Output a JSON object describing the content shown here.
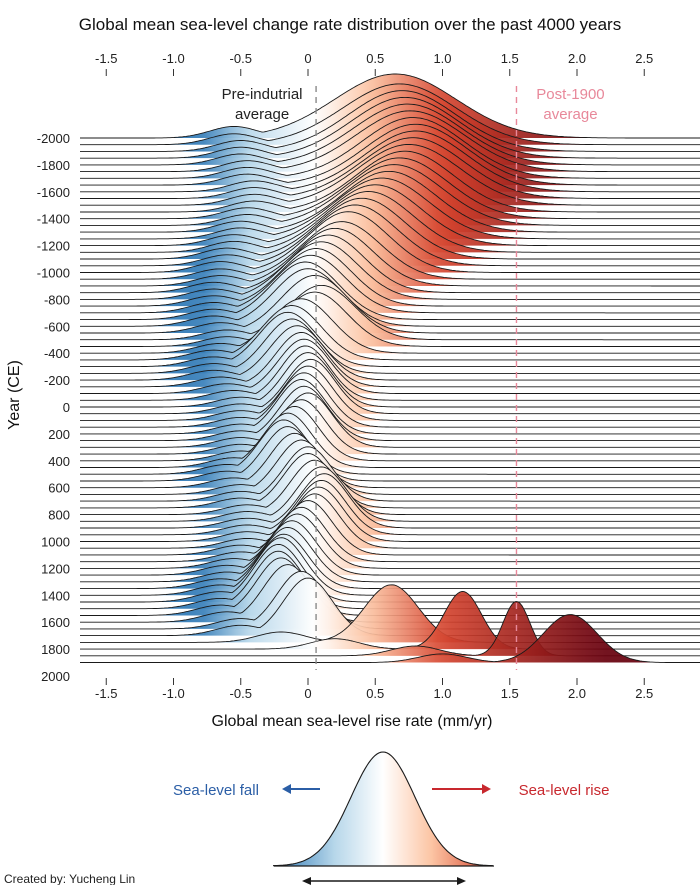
{
  "chart_data": {
    "type": "ridgeline",
    "title": "Global mean sea-level change rate distribution over the past 4000 years",
    "xlabel": "Global mean sea-level rise rate (mm/yr)",
    "ylabel": "Year (CE)",
    "xlim": [
      -1.7,
      2.9
    ],
    "x_ticks": [
      "-1.5",
      "-1.0",
      "-0.5",
      "0",
      "0.5",
      "1.0",
      "1.5",
      "2.0",
      "2.5"
    ],
    "y_ticks": [
      "-2000",
      "-1800",
      "-1600",
      "-1400",
      "-1200",
      "-1000",
      "-800",
      "-600",
      "-400",
      "-200",
      "0",
      "200",
      "400",
      "600",
      "800",
      "1000",
      "1200",
      "1400",
      "1600",
      "1800",
      "2000"
    ],
    "year_step": 50,
    "ridges": [
      {
        "year": -2000,
        "mean": 0.65,
        "sd": 0.45,
        "amp": 1.0,
        "low": -0.55
      },
      {
        "year": -1950,
        "mean": 0.68,
        "sd": 0.42,
        "amp": 0.95,
        "low": -0.55
      },
      {
        "year": -1900,
        "mean": 0.7,
        "sd": 0.4,
        "amp": 0.95,
        "low": -0.5
      },
      {
        "year": -1850,
        "mean": 0.72,
        "sd": 0.4,
        "amp": 0.95,
        "low": -0.5
      },
      {
        "year": -1800,
        "mean": 0.74,
        "sd": 0.4,
        "amp": 0.95,
        "low": -0.5
      },
      {
        "year": -1750,
        "mean": 0.76,
        "sd": 0.4,
        "amp": 0.95,
        "low": -0.45
      },
      {
        "year": -1700,
        "mean": 0.78,
        "sd": 0.38,
        "amp": 0.95,
        "low": -0.45
      },
      {
        "year": -1650,
        "mean": 0.8,
        "sd": 0.38,
        "amp": 0.95,
        "low": -0.45
      },
      {
        "year": -1600,
        "mean": 0.8,
        "sd": 0.38,
        "amp": 0.95,
        "low": -0.4
      },
      {
        "year": -1550,
        "mean": 0.78,
        "sd": 0.38,
        "amp": 0.95,
        "low": -0.4
      },
      {
        "year": -1500,
        "mean": 0.75,
        "sd": 0.38,
        "amp": 0.95,
        "low": -0.4
      },
      {
        "year": -1450,
        "mean": 0.72,
        "sd": 0.36,
        "amp": 0.95,
        "low": -0.4
      },
      {
        "year": -1400,
        "mean": 0.68,
        "sd": 0.36,
        "amp": 0.95,
        "low": -0.45
      },
      {
        "year": -1350,
        "mean": 0.64,
        "sd": 0.36,
        "amp": 0.95,
        "low": -0.45
      },
      {
        "year": -1300,
        "mean": 0.6,
        "sd": 0.35,
        "amp": 0.95,
        "low": -0.5
      },
      {
        "year": -1250,
        "mean": 0.55,
        "sd": 0.35,
        "amp": 0.95,
        "low": -0.5
      },
      {
        "year": -1200,
        "mean": 0.5,
        "sd": 0.34,
        "amp": 0.95,
        "low": -0.55
      },
      {
        "year": -1150,
        "mean": 0.45,
        "sd": 0.33,
        "amp": 0.95,
        "low": -0.55
      },
      {
        "year": -1100,
        "mean": 0.4,
        "sd": 0.32,
        "amp": 0.95,
        "low": -0.6
      },
      {
        "year": -1050,
        "mean": 0.35,
        "sd": 0.31,
        "amp": 0.95,
        "low": -0.6
      },
      {
        "year": -1000,
        "mean": 0.3,
        "sd": 0.3,
        "amp": 0.95,
        "low": -0.65
      },
      {
        "year": -950,
        "mean": 0.25,
        "sd": 0.29,
        "amp": 0.9,
        "low": -0.65
      },
      {
        "year": -900,
        "mean": 0.2,
        "sd": 0.28,
        "amp": 0.9,
        "low": -0.65
      },
      {
        "year": -850,
        "mean": 0.15,
        "sd": 0.27,
        "amp": 0.9,
        "low": -0.7
      },
      {
        "year": -800,
        "mean": 0.1,
        "sd": 0.27,
        "amp": 0.9,
        "low": -0.7
      },
      {
        "year": -750,
        "mean": 0.06,
        "sd": 0.26,
        "amp": 0.9,
        "low": -0.7
      },
      {
        "year": -700,
        "mean": 0.02,
        "sd": 0.26,
        "amp": 0.9,
        "low": -0.7
      },
      {
        "year": -650,
        "mean": -0.02,
        "sd": 0.25,
        "amp": 0.9,
        "low": -0.7
      },
      {
        "year": -600,
        "mean": 0.0,
        "sd": 0.25,
        "amp": 0.9,
        "low": -0.7
      },
      {
        "year": -550,
        "mean": 0.05,
        "sd": 0.25,
        "amp": 0.9,
        "low": -0.65
      },
      {
        "year": -500,
        "mean": 0.1,
        "sd": 0.25,
        "amp": 0.85,
        "low": -0.6
      },
      {
        "year": -450,
        "mean": 0.05,
        "sd": 0.24,
        "amp": 0.85,
        "low": -0.6
      },
      {
        "year": -400,
        "mean": -0.05,
        "sd": 0.23,
        "amp": 0.85,
        "low": -0.65
      },
      {
        "year": -350,
        "mean": -0.12,
        "sd": 0.22,
        "amp": 0.85,
        "low": -0.7
      },
      {
        "year": -300,
        "mean": -0.15,
        "sd": 0.21,
        "amp": 0.85,
        "low": -0.7
      },
      {
        "year": -250,
        "mean": -0.12,
        "sd": 0.2,
        "amp": 0.85,
        "low": -0.7
      },
      {
        "year": -200,
        "mean": -0.08,
        "sd": 0.2,
        "amp": 0.85,
        "low": -0.7
      },
      {
        "year": -150,
        "mean": -0.05,
        "sd": 0.19,
        "amp": 0.85,
        "low": -0.65
      },
      {
        "year": -100,
        "mean": -0.03,
        "sd": 0.19,
        "amp": 0.85,
        "low": -0.6
      },
      {
        "year": -50,
        "mean": -0.02,
        "sd": 0.18,
        "amp": 0.85,
        "low": -0.55
      },
      {
        "year": 0,
        "mean": 0.0,
        "sd": 0.18,
        "amp": 0.85,
        "low": -0.5
      },
      {
        "year": 50,
        "mean": 0.02,
        "sd": 0.18,
        "amp": 0.85,
        "low": -0.5
      },
      {
        "year": 100,
        "mean": 0.0,
        "sd": 0.18,
        "amp": 0.85,
        "low": -0.5
      },
      {
        "year": 150,
        "mean": -0.03,
        "sd": 0.18,
        "amp": 0.85,
        "low": -0.5
      },
      {
        "year": 200,
        "mean": -0.05,
        "sd": 0.18,
        "amp": 0.85,
        "low": -0.5
      },
      {
        "year": 250,
        "mean": -0.03,
        "sd": 0.18,
        "amp": 0.85,
        "low": -0.5
      },
      {
        "year": 300,
        "mean": 0.0,
        "sd": 0.18,
        "amp": 0.85,
        "low": -0.5
      },
      {
        "year": 350,
        "mean": -0.05,
        "sd": 0.18,
        "amp": 0.85,
        "low": -0.5
      },
      {
        "year": 400,
        "mean": -0.1,
        "sd": 0.18,
        "amp": 0.85,
        "low": -0.5
      },
      {
        "year": 450,
        "mean": -0.15,
        "sd": 0.18,
        "amp": 0.85,
        "low": -0.55
      },
      {
        "year": 500,
        "mean": -0.18,
        "sd": 0.18,
        "amp": 0.85,
        "low": -0.6
      },
      {
        "year": 550,
        "mean": -0.15,
        "sd": 0.18,
        "amp": 0.85,
        "low": -0.6
      },
      {
        "year": 600,
        "mean": -0.1,
        "sd": 0.18,
        "amp": 0.85,
        "low": -0.55
      },
      {
        "year": 650,
        "mean": -0.05,
        "sd": 0.18,
        "amp": 0.85,
        "low": -0.5
      },
      {
        "year": 700,
        "mean": 0.0,
        "sd": 0.18,
        "amp": 0.85,
        "low": -0.5
      },
      {
        "year": 750,
        "mean": 0.0,
        "sd": 0.18,
        "amp": 0.85,
        "low": -0.5
      },
      {
        "year": 800,
        "mean": 0.05,
        "sd": 0.18,
        "amp": 0.85,
        "low": -0.45
      },
      {
        "year": 850,
        "mean": 0.1,
        "sd": 0.18,
        "amp": 0.85,
        "low": -0.45
      },
      {
        "year": 900,
        "mean": 0.12,
        "sd": 0.18,
        "amp": 0.85,
        "low": -0.45
      },
      {
        "year": 950,
        "mean": 0.1,
        "sd": 0.18,
        "amp": 0.85,
        "low": -0.45
      },
      {
        "year": 1000,
        "mean": 0.08,
        "sd": 0.18,
        "amp": 0.85,
        "low": -0.45
      },
      {
        "year": 1050,
        "mean": 0.05,
        "sd": 0.18,
        "amp": 0.85,
        "low": -0.45
      },
      {
        "year": 1100,
        "mean": 0.0,
        "sd": 0.18,
        "amp": 0.85,
        "low": -0.5
      },
      {
        "year": 1150,
        "mean": -0.05,
        "sd": 0.18,
        "amp": 0.85,
        "low": -0.5
      },
      {
        "year": 1200,
        "mean": -0.08,
        "sd": 0.18,
        "amp": 0.85,
        "low": -0.55
      },
      {
        "year": 1250,
        "mean": -0.12,
        "sd": 0.18,
        "amp": 0.85,
        "low": -0.6
      },
      {
        "year": 1300,
        "mean": -0.15,
        "sd": 0.18,
        "amp": 0.85,
        "low": -0.6
      },
      {
        "year": 1350,
        "mean": -0.18,
        "sd": 0.18,
        "amp": 0.85,
        "low": -0.65
      },
      {
        "year": 1400,
        "mean": -0.2,
        "sd": 0.18,
        "amp": 0.9,
        "low": -0.65
      },
      {
        "year": 1450,
        "mean": -0.22,
        "sd": 0.18,
        "amp": 0.9,
        "low": -0.65
      },
      {
        "year": 1500,
        "mean": -0.22,
        "sd": 0.18,
        "amp": 0.9,
        "low": -0.65
      },
      {
        "year": 1550,
        "mean": -0.2,
        "sd": 0.18,
        "amp": 0.9,
        "low": -0.65
      },
      {
        "year": 1600,
        "mean": -0.15,
        "sd": 0.18,
        "amp": 0.9,
        "low": -0.6
      },
      {
        "year": 1650,
        "mean": -0.05,
        "sd": 0.18,
        "amp": 0.9,
        "low": -0.5
      },
      {
        "year": 1700,
        "mean": 0.0,
        "sd": 0.18,
        "amp": 0.9,
        "low": -0.5
      },
      {
        "year": 1750,
        "mean": 0.62,
        "sd": 0.2,
        "amp": 0.9,
        "low": -0.2
      },
      {
        "year": 1800,
        "mean": 1.15,
        "sd": 0.14,
        "amp": 0.9,
        "low": 0.2
      },
      {
        "year": 1850,
        "mean": 1.55,
        "sd": 0.1,
        "amp": 0.85,
        "low": 0.8
      },
      {
        "year": 1900,
        "mean": 1.95,
        "sd": 0.2,
        "amp": 0.75,
        "low": 1.0
      }
    ],
    "reference_lines": [
      {
        "x": 0.06,
        "label_lines": [
          "Pre-indutrial",
          "average"
        ],
        "color": "#8a8a8a"
      },
      {
        "x": 1.55,
        "label_lines": [
          "Post-1900",
          "average"
        ],
        "color": "#e8889a"
      }
    ],
    "legend": {
      "fall_label": "Sea-level fall",
      "rise_label": "Sea-level rise",
      "fall_color": "#2b5ea6",
      "rise_color": "#c8282e"
    },
    "credit": "Created by: Yucheng Lin",
    "colors": {
      "deep_blue": "#2f79b6",
      "mid_blue": "#b7d7ea",
      "white": "#ffffff",
      "light_red": "#fcc5a4",
      "red": "#d6452f",
      "dark_red": "#67000d"
    }
  }
}
